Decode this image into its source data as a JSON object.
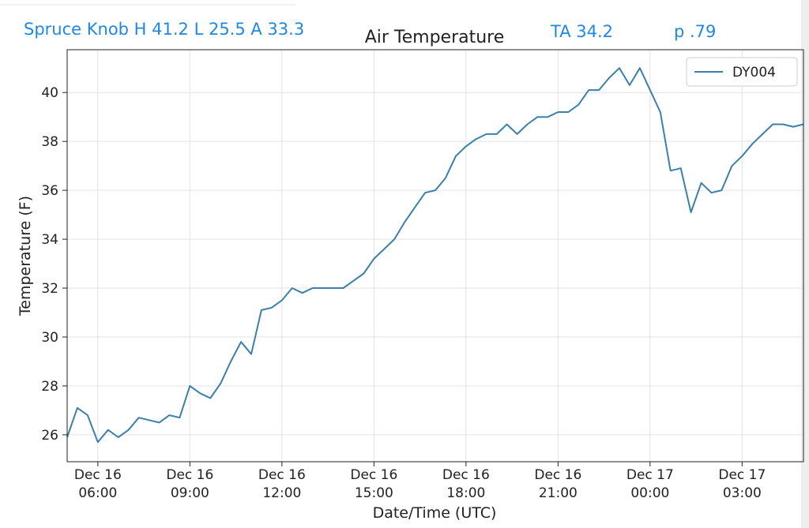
{
  "chart_data": {
    "type": "line",
    "title": "Air Temperature",
    "annotations": [
      "Spruce Knob H 41.2 L 25.5 A 33.3",
      "TA 34.2",
      "p .79"
    ],
    "xlabel": "Date/Time (UTC)",
    "ylabel": "Temperature (F)",
    "x": [
      "Dec 16 05:00",
      "Dec 16 05:20",
      "Dec 16 05:40",
      "Dec 16 06:00",
      "Dec 16 06:20",
      "Dec 16 06:40",
      "Dec 16 07:00",
      "Dec 16 07:20",
      "Dec 16 07:40",
      "Dec 16 08:00",
      "Dec 16 08:20",
      "Dec 16 08:40",
      "Dec 16 09:00",
      "Dec 16 09:20",
      "Dec 16 09:40",
      "Dec 16 10:00",
      "Dec 16 10:20",
      "Dec 16 10:40",
      "Dec 16 11:00",
      "Dec 16 11:20",
      "Dec 16 11:40",
      "Dec 16 12:00",
      "Dec 16 12:20",
      "Dec 16 12:40",
      "Dec 16 13:00",
      "Dec 16 13:20",
      "Dec 16 13:40",
      "Dec 16 14:00",
      "Dec 16 14:20",
      "Dec 16 14:40",
      "Dec 16 15:00",
      "Dec 16 15:20",
      "Dec 16 15:40",
      "Dec 16 16:00",
      "Dec 16 16:20",
      "Dec 16 16:40",
      "Dec 16 17:00",
      "Dec 16 17:20",
      "Dec 16 17:40",
      "Dec 16 18:00",
      "Dec 16 18:20",
      "Dec 16 18:40",
      "Dec 16 19:00",
      "Dec 16 19:20",
      "Dec 16 19:40",
      "Dec 16 20:00",
      "Dec 16 20:20",
      "Dec 16 20:40",
      "Dec 16 21:00",
      "Dec 16 21:20",
      "Dec 16 21:40",
      "Dec 16 22:00",
      "Dec 16 22:20",
      "Dec 16 22:40",
      "Dec 16 23:00",
      "Dec 16 23:20",
      "Dec 16 23:40",
      "Dec 17 00:00",
      "Dec 17 00:20",
      "Dec 17 00:40",
      "Dec 17 01:00",
      "Dec 17 01:20",
      "Dec 17 01:40",
      "Dec 17 02:00",
      "Dec 17 02:20",
      "Dec 17 02:40",
      "Dec 17 03:00",
      "Dec 17 03:20",
      "Dec 17 03:40",
      "Dec 17 04:00",
      "Dec 17 04:20",
      "Dec 17 04:40",
      "Dec 17 05:00"
    ],
    "series": [
      {
        "name": "DY004",
        "color": "#3a80ad",
        "values": [
          25.9,
          27.1,
          26.8,
          25.7,
          26.2,
          25.9,
          26.2,
          26.7,
          26.6,
          26.5,
          26.8,
          26.7,
          28.0,
          27.7,
          27.5,
          28.1,
          29.0,
          29.8,
          29.3,
          31.1,
          31.2,
          31.5,
          32.0,
          31.8,
          32.0,
          32.0,
          32.0,
          32.0,
          32.3,
          32.6,
          33.2,
          33.6,
          34.0,
          34.7,
          35.3,
          35.9,
          36.0,
          36.5,
          37.4,
          37.8,
          38.1,
          38.3,
          38.3,
          38.7,
          38.3,
          38.7,
          39.0,
          39.0,
          39.2,
          39.2,
          39.5,
          40.1,
          40.1,
          40.6,
          41.0,
          40.3,
          41.0,
          40.1,
          39.2,
          36.8,
          36.9,
          35.1,
          36.3,
          35.9,
          36.0,
          37.0,
          37.4,
          37.9,
          38.3,
          38.7,
          38.7,
          38.6,
          38.7
        ]
      }
    ],
    "xlim": [
      "Dec 16 05:00",
      "Dec 17 05:00"
    ],
    "xticks": [
      "Dec 16 06:00",
      "Dec 16 09:00",
      "Dec 16 12:00",
      "Dec 16 15:00",
      "Dec 16 18:00",
      "Dec 16 21:00",
      "Dec 17 00:00",
      "Dec 17 03:00"
    ],
    "ylim": [
      24.9,
      41.75
    ],
    "yticks": [
      26,
      28,
      30,
      32,
      34,
      36,
      38,
      40
    ],
    "grid": true,
    "legend": "upper right"
  }
}
